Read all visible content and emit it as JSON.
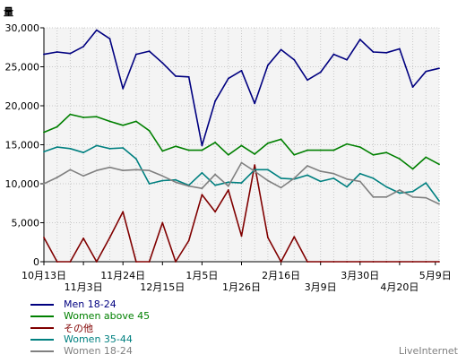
{
  "chart_data": {
    "type": "line",
    "y_unit_label": "量",
    "ylim": [
      0,
      30000
    ],
    "yticks": [
      0,
      5000,
      10000,
      15000,
      20000,
      25000,
      30000
    ],
    "ytick_labels": [
      "0",
      "5,000",
      "10,000",
      "15,000",
      "20,000",
      "25,000",
      "30,000"
    ],
    "grid": true,
    "x": [
      "2008-10-13",
      "2008-10-20",
      "2008-10-27",
      "2008-11-03",
      "2008-11-10",
      "2008-11-17",
      "2008-11-24",
      "2008-12-01",
      "2008-12-08",
      "2008-12-15",
      "2008-12-22",
      "2008-12-29",
      "2009-01-05",
      "2009-01-12",
      "2009-01-19",
      "2009-01-26",
      "2009-02-02",
      "2009-02-09",
      "2009-02-16",
      "2009-02-23",
      "2009-03-02",
      "2009-03-09",
      "2009-03-16",
      "2009-03-23",
      "2009-03-30",
      "2009-04-06",
      "2009-04-13",
      "2009-04-20",
      "2009-04-27",
      "2009-05-04",
      "2009-05-11"
    ],
    "xtick_labels": [
      {
        "x": "2008-10-13",
        "label": "10月13日",
        "row": 0
      },
      {
        "x": "2008-11-03",
        "label": "11月3日",
        "row": 1
      },
      {
        "x": "2008-11-24",
        "label": "11月24日",
        "row": 0
      },
      {
        "x": "2008-12-15",
        "label": "12月15日",
        "row": 1
      },
      {
        "x": "2009-01-05",
        "label": "1月5日",
        "row": 0
      },
      {
        "x": "2009-01-26",
        "label": "1月26日",
        "row": 1
      },
      {
        "x": "2009-02-16",
        "label": "2月16日",
        "row": 0
      },
      {
        "x": "2009-03-09",
        "label": "3月9日",
        "row": 1
      },
      {
        "x": "2009-03-30",
        "label": "3月30日",
        "row": 0
      },
      {
        "x": "2009-04-20",
        "label": "4月20日",
        "row": 1
      },
      {
        "x": "2009-05-09",
        "label": "5月9日",
        "row": 0
      }
    ],
    "legend_position": "bottom-left",
    "series": [
      {
        "name": "Men 18-24",
        "color": "#000080",
        "values": [
          26600,
          26900,
          26700,
          27600,
          29700,
          28600,
          22200,
          26600,
          27000,
          25500,
          23800,
          23700,
          14900,
          20600,
          23500,
          24500,
          20300,
          25200,
          27200,
          25900,
          23300,
          24300,
          26600,
          25900,
          28500,
          26900,
          26800,
          27300,
          22400,
          24400,
          24800
        ]
      },
      {
        "name": "Women above 45",
        "color": "#008000",
        "values": [
          16600,
          17300,
          18900,
          18500,
          18600,
          18000,
          17500,
          18000,
          16800,
          14200,
          14800,
          14300,
          14300,
          15300,
          13700,
          14900,
          13800,
          15200,
          15700,
          13700,
          14300,
          14300,
          14300,
          15100,
          14700,
          13700,
          14000,
          13200,
          11900,
          13400,
          12500
        ]
      },
      {
        "name": "その他",
        "color": "#800000",
        "values": [
          3100,
          0,
          0,
          3000,
          0,
          3100,
          6400,
          0,
          0,
          5000,
          0,
          2700,
          8600,
          6400,
          9200,
          3300,
          12400,
          3100,
          0,
          3200,
          0,
          0,
          0,
          0,
          0,
          0,
          0,
          0,
          0,
          0,
          0
        ]
      },
      {
        "name": "Women 35-44",
        "color": "#008080",
        "values": [
          14100,
          14700,
          14500,
          14000,
          14900,
          14500,
          14600,
          13200,
          10000,
          10400,
          10500,
          9800,
          11400,
          9800,
          10200,
          10100,
          11800,
          11800,
          10700,
          10600,
          11100,
          10300,
          10700,
          9600,
          11300,
          10700,
          9600,
          8800,
          9000,
          10100,
          7800
        ]
      },
      {
        "name": "Women 18-24",
        "color": "#808080",
        "values": [
          10000,
          10800,
          11800,
          11000,
          11700,
          12100,
          11700,
          11800,
          11700,
          11000,
          10200,
          9700,
          9400,
          11200,
          9700,
          12700,
          11600,
          10400,
          9500,
          10700,
          12300,
          11600,
          11300,
          10600,
          10300,
          8300,
          8300,
          9200,
          8300,
          8200,
          7400
        ]
      }
    ]
  },
  "watermark": "LiveInternet"
}
